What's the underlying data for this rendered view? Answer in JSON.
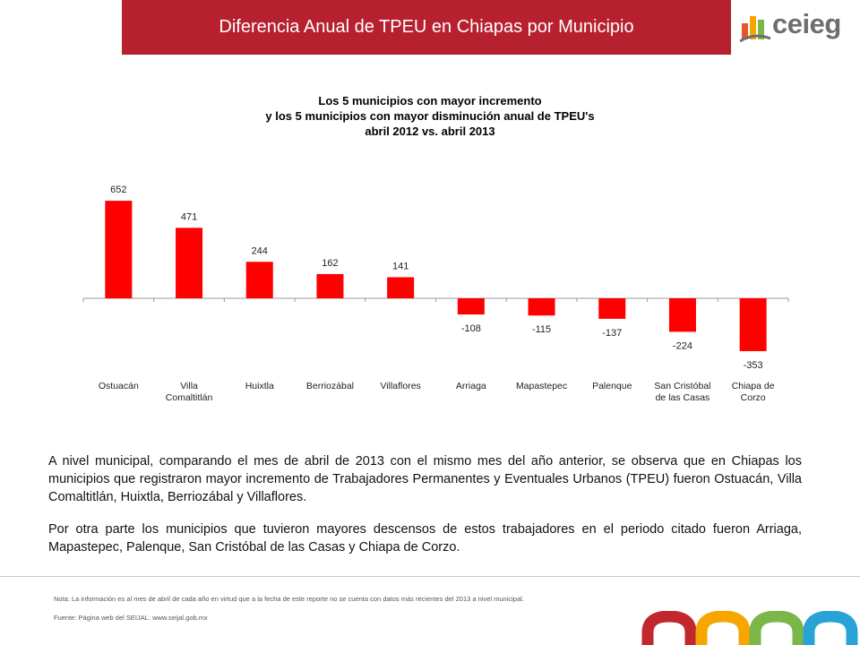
{
  "header": {
    "title": "Diferencia Anual de TPEU en Chiapas por Municipio"
  },
  "logo": {
    "text": "ceieg",
    "colors": [
      "#e4572e",
      "#f7a600",
      "#7ab648",
      "#6d6e71"
    ]
  },
  "chart_data": {
    "type": "bar",
    "title_lines": [
      "Los 5 municipios con mayor incremento",
      "y los 5 municipios con mayor disminución anual de TPEU's",
      "abril 2012 vs. abril 2013"
    ],
    "categories": [
      [
        "Ostuacán"
      ],
      [
        "Villa",
        "Comaltitlán"
      ],
      [
        "Huixtla"
      ],
      [
        "Berriozábal"
      ],
      [
        "Villaflores"
      ],
      [
        "Arriaga"
      ],
      [
        "Mapastepec"
      ],
      [
        "Palenque"
      ],
      [
        "San Cristóbal",
        "de las Casas"
      ],
      [
        "Chiapa de",
        "Corzo"
      ]
    ],
    "values": [
      652,
      471,
      244,
      162,
      141,
      -108,
      -115,
      -137,
      -224,
      -353
    ],
    "data_labels": [
      "652",
      "471",
      "244",
      "162",
      "141",
      "-108",
      "-115",
      "-137",
      "-224",
      "-353"
    ],
    "bar_color": "#ff0000",
    "xlabel": "",
    "ylabel": "",
    "y_axis_visible": false,
    "legend": "none",
    "grid": false
  },
  "text": {
    "para1": "A nivel municipal, comparando el mes de abril de 2013 con el mismo mes del año anterior, se observa que en Chiapas los municipios que registraron mayor incremento de Trabajadores Permanentes y Eventuales Urbanos (TPEU) fueron Ostuacán, Villa Comaltitlán, Huixtla, Berriozábal y Villaflores.",
    "para2": "Por otra parte los municipios que tuvieron mayores descensos de estos trabajadores en el periodo citado fueron Arriaga, Mapastepec, Palenque, San Cristóbal de las Casas y Chiapa de Corzo.",
    "note": "Nota: La información es al mes de abril de cada año en virtud que a la fecha de este reporte no se cuenta con datos más recientes del 2013 a nivel municipal.",
    "source": "Fuente:   Página web del SEIJAL: www.seijal.gob.mx"
  },
  "footer_logo_colors": [
    "#c1272d",
    "#f7a600",
    "#7ab648",
    "#29a3d6"
  ]
}
